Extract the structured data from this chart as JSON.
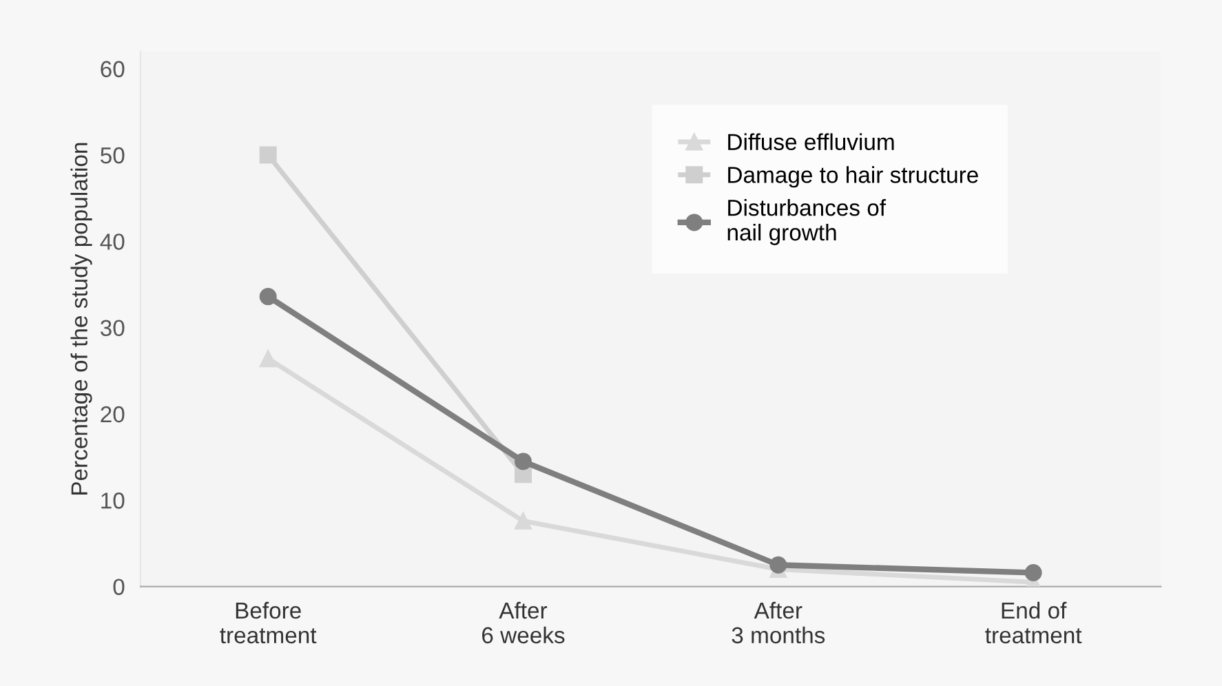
{
  "chart_data": {
    "type": "line",
    "ylabel": "Percentage of the study population",
    "categories": [
      "Before\ntreatment",
      "After\n6 weeks",
      "After\n3 months",
      "End of\ntreatment"
    ],
    "series": [
      {
        "name": "Diffuse effluvium",
        "color": "#d9d9d9",
        "marker": "triangle",
        "values": [
          26.4,
          7.6,
          2,
          0.5
        ]
      },
      {
        "name": "Damage to hair structure",
        "color": "#cfcfcf",
        "marker": "square",
        "values": [
          50,
          13,
          null,
          null
        ]
      },
      {
        "name": "Disturbances of\nnail growth",
        "color": "#7f7f7f",
        "marker": "circle",
        "values": [
          33.6,
          14.5,
          2.5,
          1.6
        ]
      }
    ],
    "ylim": [
      0,
      62
    ],
    "yticks": [
      0,
      10,
      20,
      30,
      40,
      50,
      60
    ],
    "grid": false,
    "legend": "top right",
    "line_style": "solid"
  }
}
